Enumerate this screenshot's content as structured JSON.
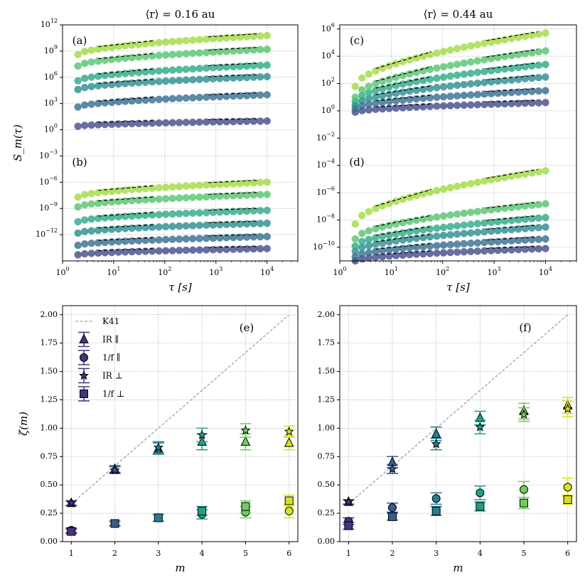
{
  "colors": {
    "viridis": [
      "#46327e",
      "#365c8d",
      "#277f8e",
      "#1fa187",
      "#4ac16d",
      "#a0da39",
      "#d8e219"
    ],
    "marker_m": [
      "#46327e",
      "#365c8d",
      "#277f8e",
      "#1fa187",
      "#6ece58",
      "#d8e219"
    ],
    "grid": "#b0b0b0",
    "k41": "#888888"
  },
  "chart_data": [
    {
      "id": "top-left",
      "type": "scatter",
      "xscale": "log",
      "yscale": "log",
      "title": "⟨r⟩ = 0.16 au",
      "xlabel": "τ [s]",
      "ylabel": "S_m(τ)",
      "xlim": [
        1,
        40000
      ],
      "ylim": [
        1e-15,
        1000000000000.0
      ],
      "xticks": [
        {
          "v": 1,
          "l": "10^0"
        },
        {
          "v": 10,
          "l": "10^1"
        },
        {
          "v": 100,
          "l": "10^2"
        },
        {
          "v": 1000,
          "l": "10^3"
        },
        {
          "v": 10000,
          "l": "10^4"
        }
      ],
      "yticks": [
        {
          "v": 1000000000000.0,
          "l": "10^12"
        },
        {
          "v": 1000000000.0,
          "l": "10^9"
        },
        {
          "v": 1000000.0,
          "l": "10^6"
        },
        {
          "v": 1000.0,
          "l": "10^3"
        },
        {
          "v": 1,
          "l": "10^0"
        },
        {
          "v": 0.001,
          "l": "10^-3"
        },
        {
          "v": 1e-06,
          "l": "10^-6"
        },
        {
          "v": 1e-09,
          "l": "10^-9"
        },
        {
          "v": 1e-12,
          "l": "10^-12"
        }
      ],
      "panel_labels": [
        {
          "text": "(a)",
          "pos": "top-left"
        },
        {
          "text": "(b)",
          "pos": "mid-left"
        }
      ],
      "groups": [
        {
          "label": "(a)",
          "curves": [
            {
              "m": 1,
              "s0": 2.5,
              "s1": 10.0,
              "a": 0.25,
              "b": 0.15
            },
            {
              "m": 2,
              "s0": 400.0,
              "s1": 10000.0,
              "a": 0.45,
              "b": 0.25
            },
            {
              "m": 3,
              "s0": 40000.0,
              "s1": 1200000.0,
              "a": 0.55,
              "b": 0.3
            },
            {
              "m": 4,
              "s0": 400000.0,
              "s1": 25000000.0,
              "a": 0.6,
              "b": 0.35
            },
            {
              "m": 5,
              "s0": 20000000.0,
              "s1": 1600000000.0,
              "a": 0.7,
              "b": 0.35
            },
            {
              "m": 6,
              "s0": 400000000.0,
              "s1": 60000000000.0,
              "a": 0.75,
              "b": 0.4
            }
          ]
        },
        {
          "label": "(b)",
          "curves": [
            {
              "m": 1,
              "s0": 5e-15,
              "s1": 2.5e-14,
              "a": 0.2,
              "b": 0.1
            },
            {
              "m": 2,
              "s0": 6e-14,
              "s1": 6e-13,
              "a": 0.3,
              "b": 0.15
            },
            {
              "m": 3,
              "s0": 1.5e-12,
              "s1": 2e-11,
              "a": 0.35,
              "b": 0.2
            },
            {
              "m": 4,
              "s0": 3e-11,
              "s1": 6e-10,
              "a": 0.4,
              "b": 0.2
            },
            {
              "m": 5,
              "s0": 1.5e-09,
              "s1": 4e-08,
              "a": 0.45,
              "b": 0.25
            },
            {
              "m": 6,
              "s0": 2e-08,
              "s1": 1e-06,
              "a": 0.5,
              "b": 0.25
            }
          ]
        }
      ]
    },
    {
      "id": "top-right",
      "type": "scatter",
      "xscale": "log",
      "yscale": "log",
      "title": "⟨r⟩ = 0.44 au",
      "xlabel": "τ [s]",
      "ylabel": "",
      "xlim": [
        1,
        40000
      ],
      "ylim": [
        1e-11,
        2000000.0
      ],
      "xticks": [
        {
          "v": 1,
          "l": "10^0"
        },
        {
          "v": 10,
          "l": "10^1"
        },
        {
          "v": 100,
          "l": "10^2"
        },
        {
          "v": 1000,
          "l": "10^3"
        },
        {
          "v": 10000,
          "l": "10^4"
        }
      ],
      "yticks": [
        {
          "v": 1000000.0,
          "l": "10^6"
        },
        {
          "v": 10000.0,
          "l": "10^4"
        },
        {
          "v": 100.0,
          "l": "10^2"
        },
        {
          "v": 1,
          "l": "10^0"
        },
        {
          "v": 0.01,
          "l": "10^-2"
        },
        {
          "v": 0.0001,
          "l": "10^-4"
        },
        {
          "v": 1e-06,
          "l": "10^-6"
        },
        {
          "v": 1e-08,
          "l": "10^-8"
        },
        {
          "v": 1e-10,
          "l": "10^-10"
        }
      ],
      "panel_labels": [
        {
          "text": "(c)",
          "pos": "top-left"
        },
        {
          "text": "(d)",
          "pos": "mid-left"
        }
      ],
      "groups": [
        {
          "label": "(c)",
          "curves": [
            {
              "m": 1,
              "s0": 0.8,
              "s1": 4,
              "a": 0.35,
              "b": 0.15
            },
            {
              "m": 2,
              "s0": 1.5,
              "s1": 30,
              "a": 0.55,
              "b": 0.25
            },
            {
              "m": 3,
              "s0": 2.5,
              "s1": 300,
              "a": 0.75,
              "b": 0.3
            },
            {
              "m": 4,
              "s0": 5,
              "s1": 2500,
              "a": 0.95,
              "b": 0.35
            },
            {
              "m": 5,
              "s0": 10,
              "s1": 25000,
              "a": 1.1,
              "b": 0.35
            },
            {
              "m": 6,
              "s0": 60,
              "s1": 500000,
              "a": 1.15,
              "b": 0.4
            }
          ]
        },
        {
          "label": "(d)",
          "curves": [
            {
              "m": 1,
              "s0": 1e-11,
              "s1": 8e-11,
              "a": 0.35,
              "b": 0.15
            },
            {
              "m": 2,
              "s0": 2e-11,
              "s1": 4e-10,
              "a": 0.55,
              "b": 0.2
            },
            {
              "m": 3,
              "s0": 5e-11,
              "s1": 3e-09,
              "a": 0.75,
              "b": 0.25
            },
            {
              "m": 4,
              "s0": 1.2e-10,
              "s1": 1.5e-08,
              "a": 0.95,
              "b": 0.3
            },
            {
              "m": 5,
              "s0": 4e-10,
              "s1": 1.5e-07,
              "a": 1.05,
              "b": 0.35
            },
            {
              "m": 6,
              "s0": 5e-09,
              "s1": 4e-05,
              "a": 1.15,
              "b": 0.4
            }
          ]
        }
      ]
    },
    {
      "id": "bottom-left",
      "type": "scatter",
      "xlabel": "m",
      "ylabel": "ζ(m)",
      "xlim": [
        0.8,
        6.2
      ],
      "ylim": [
        0,
        2.08
      ],
      "xticks": [
        1,
        2,
        3,
        4,
        5,
        6
      ],
      "yticks": [
        "0.00",
        "0.25",
        "0.50",
        "0.75",
        "1.00",
        "1.25",
        "1.50",
        "1.75",
        "2.00"
      ],
      "panel_label": "(e)",
      "legend": [
        {
          "marker": "dashed",
          "label": "K41"
        },
        {
          "marker": "triangle",
          "label": "IR ∥"
        },
        {
          "marker": "circle",
          "label": "1/f ∥"
        },
        {
          "marker": "star",
          "label": "IR ⊥"
        },
        {
          "marker": "square",
          "label": "1/f ⊥"
        }
      ],
      "series": [
        {
          "name": "IR ∥",
          "marker": "triangle",
          "values": [
            0.34,
            0.64,
            0.82,
            0.88,
            0.88,
            0.87
          ],
          "err": [
            0.02,
            0.03,
            0.05,
            0.07,
            0.07,
            0.06
          ]
        },
        {
          "name": "1/f ∥",
          "marker": "circle",
          "values": [
            0.1,
            0.16,
            0.21,
            0.24,
            0.26,
            0.27
          ],
          "err": [
            0.02,
            0.02,
            0.03,
            0.04,
            0.05,
            0.06
          ]
        },
        {
          "name": "IR ⊥",
          "marker": "star",
          "values": [
            0.34,
            0.63,
            0.83,
            0.94,
            0.98,
            0.97
          ],
          "err": [
            0.02,
            0.03,
            0.05,
            0.06,
            0.06,
            0.05
          ]
        },
        {
          "name": "1/f ⊥",
          "marker": "square",
          "values": [
            0.09,
            0.16,
            0.21,
            0.27,
            0.31,
            0.36
          ],
          "err": [
            0.02,
            0.02,
            0.03,
            0.04,
            0.05,
            0.05
          ]
        }
      ]
    },
    {
      "id": "bottom-right",
      "type": "scatter",
      "xlabel": "m",
      "ylabel": "",
      "xlim": [
        0.8,
        6.2
      ],
      "ylim": [
        0,
        2.08
      ],
      "xticks": [
        1,
        2,
        3,
        4,
        5,
        6
      ],
      "yticks": [
        "0.00",
        "0.25",
        "0.50",
        "0.75",
        "1.00",
        "1.25",
        "1.50",
        "1.75",
        "2.00"
      ],
      "panel_label": "(f)",
      "series": [
        {
          "name": "IR ∥",
          "marker": "triangle",
          "values": [
            0.35,
            0.7,
            0.95,
            1.09,
            1.15,
            1.2
          ],
          "err": [
            0.02,
            0.05,
            0.06,
            0.06,
            0.07,
            0.07
          ]
        },
        {
          "name": "1/f ∥",
          "marker": "circle",
          "values": [
            0.18,
            0.3,
            0.38,
            0.43,
            0.46,
            0.48
          ],
          "err": [
            0.03,
            0.04,
            0.05,
            0.06,
            0.07,
            0.08
          ]
        },
        {
          "name": "IR ⊥",
          "marker": "star",
          "values": [
            0.35,
            0.64,
            0.86,
            1.01,
            1.12,
            1.17
          ],
          "err": [
            0.02,
            0.04,
            0.05,
            0.06,
            0.06,
            0.07
          ]
        },
        {
          "name": "1/f ⊥",
          "marker": "square",
          "values": [
            0.14,
            0.22,
            0.27,
            0.31,
            0.34,
            0.37
          ],
          "err": [
            0.03,
            0.03,
            0.04,
            0.04,
            0.05,
            0.04
          ]
        }
      ]
    }
  ]
}
